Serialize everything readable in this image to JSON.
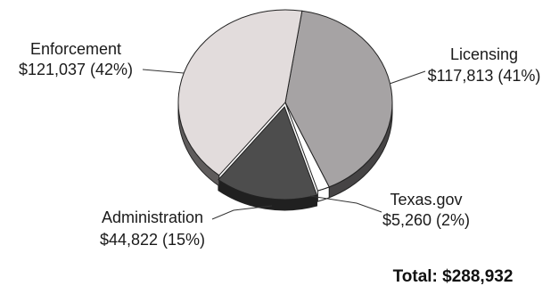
{
  "chart_data": {
    "type": "pie",
    "title": "",
    "total_label": "Total: $288,932",
    "slices": [
      {
        "label": "Enforcement",
        "amount": "$121,037",
        "percent_label": "(42%)",
        "value": 121037,
        "percent": 42,
        "color": "#e2dcdc"
      },
      {
        "label": "Licensing",
        "amount": "$117,813",
        "percent_label": "(41%)",
        "value": 117813,
        "percent": 41,
        "color": "#a6a3a4"
      },
      {
        "label": "Texas.gov",
        "amount": "$5,260",
        "percent_label": "(2%)",
        "value": 5260,
        "percent": 2,
        "color": "#ffffff"
      },
      {
        "label": "Administration",
        "amount": "$44,822",
        "percent_label": "(15%)",
        "value": 44822,
        "percent": 15,
        "color": "#4d4d4d"
      }
    ]
  }
}
